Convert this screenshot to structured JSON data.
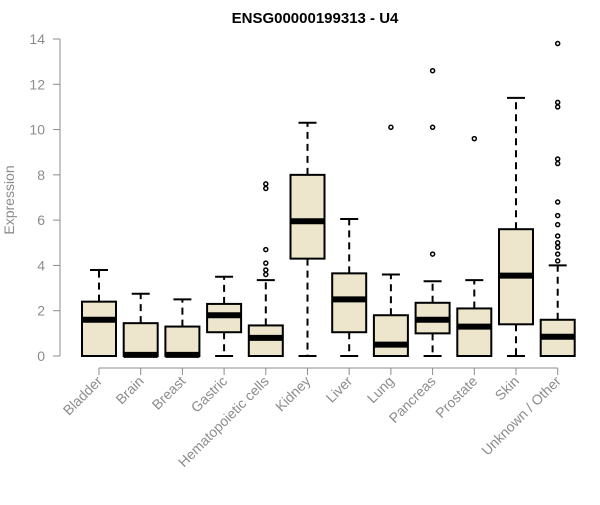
{
  "chart_data": {
    "type": "boxplot",
    "title": "ENSG00000199313 - U4",
    "xlabel": "",
    "ylabel": "Expression",
    "ylim": [
      0,
      14
    ],
    "yticks": [
      0,
      2,
      4,
      6,
      8,
      10,
      12,
      14
    ],
    "grid": false,
    "legend": "none",
    "colors": {
      "box_fill": "#ede5cc",
      "stroke": "#000000",
      "axis_text": "#8c8c8c"
    },
    "categories": [
      "Bladder",
      "Brain",
      "Breast",
      "Gastric",
      "Hematopoietic cells",
      "Kidney",
      "Liver",
      "Lung",
      "Pancreas",
      "Prostate",
      "Skin",
      "Unknown / Other"
    ],
    "boxes": [
      {
        "category": "Bladder",
        "whisker_low": 0,
        "q1": 0,
        "median": 1.6,
        "q3": 2.4,
        "whisker_high": 3.8,
        "outliers": []
      },
      {
        "category": "Brain",
        "whisker_low": 0,
        "q1": 0,
        "median": 0.05,
        "q3": 1.45,
        "whisker_high": 2.75,
        "outliers": []
      },
      {
        "category": "Breast",
        "whisker_low": 0,
        "q1": 0,
        "median": 0.05,
        "q3": 1.3,
        "whisker_high": 2.5,
        "outliers": []
      },
      {
        "category": "Gastric",
        "whisker_low": 0,
        "q1": 1.05,
        "median": 1.8,
        "q3": 2.3,
        "whisker_high": 3.5,
        "outliers": []
      },
      {
        "category": "Hematopoietic cells",
        "whisker_low": 0,
        "q1": 0,
        "median": 0.8,
        "q3": 1.35,
        "whisker_high": 3.35,
        "outliers": [
          3.6,
          3.8,
          4.1,
          4.7,
          7.4,
          7.6
        ]
      },
      {
        "category": "Kidney",
        "whisker_low": 0,
        "q1": 4.3,
        "median": 5.95,
        "q3": 8.0,
        "whisker_high": 10.3,
        "outliers": []
      },
      {
        "category": "Liver",
        "whisker_low": 0,
        "q1": 1.05,
        "median": 2.5,
        "q3": 3.65,
        "whisker_high": 6.05,
        "outliers": []
      },
      {
        "category": "Lung",
        "whisker_low": 0,
        "q1": 0,
        "median": 0.5,
        "q3": 1.8,
        "whisker_high": 3.6,
        "outliers": [
          10.1
        ]
      },
      {
        "category": "Pancreas",
        "whisker_low": 0,
        "q1": 1.0,
        "median": 1.6,
        "q3": 2.35,
        "whisker_high": 3.3,
        "outliers": [
          4.5,
          10.1,
          12.6
        ]
      },
      {
        "category": "Prostate",
        "whisker_low": 0,
        "q1": 0,
        "median": 1.3,
        "q3": 2.1,
        "whisker_high": 3.35,
        "outliers": [
          9.6
        ]
      },
      {
        "category": "Skin",
        "whisker_low": 0,
        "q1": 1.4,
        "median": 3.55,
        "q3": 5.6,
        "whisker_high": 11.4,
        "outliers": []
      },
      {
        "category": "Unknown / Other",
        "whisker_low": 0,
        "q1": 0,
        "median": 0.85,
        "q3": 1.6,
        "whisker_high": 4.0,
        "outliers": [
          4.2,
          4.5,
          4.8,
          5.0,
          5.3,
          5.8,
          6.2,
          6.8,
          8.5,
          8.7,
          11.0,
          11.2,
          13.8
        ]
      }
    ]
  }
}
